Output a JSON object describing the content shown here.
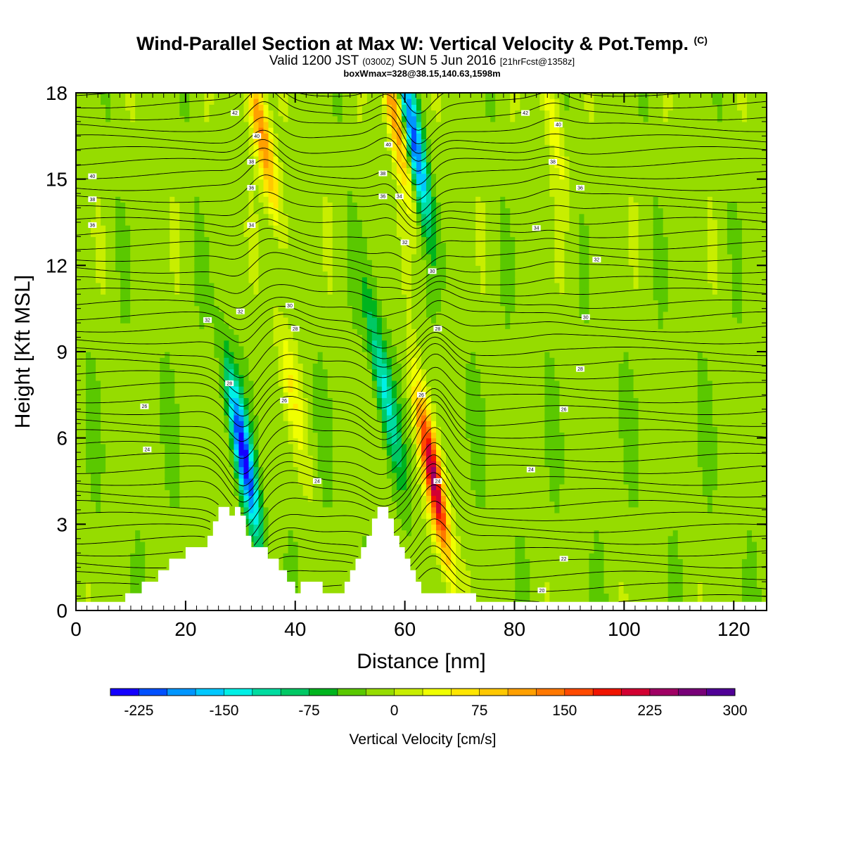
{
  "header": {
    "title_main": "Wind-Parallel Section at Max W: Vertical Velocity & Pot.Temp.",
    "title_copyright": "(C)",
    "valid_prefix": "Valid 1200 JST",
    "valid_utc": "(0300Z)",
    "valid_date": "SUN 5 Jun 2016",
    "valid_fcst": "[21hrFcst@1358z]",
    "box_info": "boxWmax=328@38.15,140.63,1598m"
  },
  "chart_data": {
    "type": "heatmap",
    "xlabel": "Distance [nm]",
    "ylabel": "Height [Kft MSL]",
    "xlim": [
      0,
      126
    ],
    "ylim": [
      0,
      18
    ],
    "x_ticks": [
      "0",
      "20",
      "40",
      "60",
      "80",
      "100",
      "120"
    ],
    "y_ticks": [
      "0",
      "3",
      "6",
      "9",
      "12",
      "15",
      "18"
    ],
    "colorbar": {
      "title": "Vertical Velocity [cm/s]",
      "tick_labels": [
        "-225",
        "-150",
        "-75",
        "0",
        "75",
        "150",
        "225",
        "300"
      ],
      "colors": [
        "#1400ff",
        "#0050ff",
        "#0096ff",
        "#00c8ff",
        "#00f0e6",
        "#00dca0",
        "#00c864",
        "#00b41e",
        "#5ac800",
        "#96dc00",
        "#c8ee00",
        "#f0ff00",
        "#ffe600",
        "#ffc800",
        "#ffa000",
        "#ff7800",
        "#ff4a00",
        "#f01400",
        "#d20032",
        "#a00064",
        "#780078",
        "#500096"
      ]
    },
    "w_field": {
      "background_cm_s": 10,
      "features": [
        {
          "x": 30.5,
          "z": 5.5,
          "w": -220
        },
        {
          "x": 34,
          "z": 16.5,
          "w": 150
        },
        {
          "x": 39,
          "z": 8,
          "w": 60
        },
        {
          "x": 56,
          "z": 8,
          "w": -120
        },
        {
          "x": 58,
          "z": 17.5,
          "w": 150
        },
        {
          "x": 61.5,
          "z": 16.5,
          "w": -200
        },
        {
          "x": 65.3,
          "z": 4.5,
          "w": 250
        },
        {
          "x": 87,
          "z": 17,
          "w": 50
        }
      ]
    },
    "terrain_kft": [
      [
        0,
        0.3
      ],
      [
        9,
        0.3
      ],
      [
        9,
        0.6
      ],
      [
        12,
        0.6
      ],
      [
        12,
        1.0
      ],
      [
        15,
        1.0
      ],
      [
        15,
        1.4
      ],
      [
        17,
        1.4
      ],
      [
        17,
        1.8
      ],
      [
        20,
        1.8
      ],
      [
        20,
        2.2
      ],
      [
        24,
        2.2
      ],
      [
        24,
        2.6
      ],
      [
        25,
        2.6
      ],
      [
        25,
        3.1
      ],
      [
        26,
        3.1
      ],
      [
        26,
        3.6
      ],
      [
        28,
        3.6
      ],
      [
        28,
        3.3
      ],
      [
        29,
        3.3
      ],
      [
        29,
        3.6
      ],
      [
        30,
        3.6
      ],
      [
        30,
        3.3
      ],
      [
        31,
        3.3
      ],
      [
        31,
        2.6
      ],
      [
        32,
        2.6
      ],
      [
        32,
        2.2
      ],
      [
        35,
        2.2
      ],
      [
        35,
        1.8
      ],
      [
        37,
        1.8
      ],
      [
        37,
        1.4
      ],
      [
        38.5,
        1.4
      ],
      [
        38.5,
        1.0
      ],
      [
        40,
        1.0
      ],
      [
        40,
        0.6
      ],
      [
        41,
        0.6
      ],
      [
        41,
        1.0
      ],
      [
        45,
        1.0
      ],
      [
        45,
        0.6
      ],
      [
        46,
        0.6
      ],
      [
        46,
        0.6
      ],
      [
        49,
        0.6
      ],
      [
        49,
        1.0
      ],
      [
        50,
        1.0
      ],
      [
        50,
        1.4
      ],
      [
        51,
        1.4
      ],
      [
        51,
        1.8
      ],
      [
        52,
        1.8
      ],
      [
        52,
        2.2
      ],
      [
        53,
        2.2
      ],
      [
        53,
        2.6
      ],
      [
        54,
        2.6
      ],
      [
        54,
        3.2
      ],
      [
        55,
        3.2
      ],
      [
        55,
        3.6
      ],
      [
        57,
        3.6
      ],
      [
        57,
        3.2
      ],
      [
        58,
        3.2
      ],
      [
        58,
        2.6
      ],
      [
        59,
        2.6
      ],
      [
        59,
        2.2
      ],
      [
        60,
        2.2
      ],
      [
        60,
        1.8
      ],
      [
        61,
        1.8
      ],
      [
        61,
        1.4
      ],
      [
        62,
        1.4
      ],
      [
        62,
        1.0
      ],
      [
        63,
        1.0
      ],
      [
        63,
        0.6
      ],
      [
        65,
        0.6
      ],
      [
        65,
        0.6
      ],
      [
        73,
        0.6
      ],
      [
        73,
        0.3
      ],
      [
        126,
        0.3
      ]
    ],
    "contour_labels": [
      {
        "x": 3,
        "z": 15.1,
        "text": "40"
      },
      {
        "x": 3,
        "z": 14.3,
        "text": "38"
      },
      {
        "x": 3,
        "z": 13.4,
        "text": "36"
      },
      {
        "x": 12.5,
        "z": 7.1,
        "text": "26"
      },
      {
        "x": 13,
        "z": 5.6,
        "text": "24"
      },
      {
        "x": 24,
        "z": 10.1,
        "text": "32"
      },
      {
        "x": 28,
        "z": 7.9,
        "text": "28"
      },
      {
        "x": 29,
        "z": 17.3,
        "text": "42"
      },
      {
        "x": 33,
        "z": 16.5,
        "text": "40"
      },
      {
        "x": 32,
        "z": 15.6,
        "text": "38"
      },
      {
        "x": 32,
        "z": 14.7,
        "text": "36"
      },
      {
        "x": 32,
        "z": 13.4,
        "text": "34"
      },
      {
        "x": 30,
        "z": 10.4,
        "text": "32"
      },
      {
        "x": 39,
        "z": 10.6,
        "text": "30"
      },
      {
        "x": 40,
        "z": 9.8,
        "text": "28"
      },
      {
        "x": 38,
        "z": 7.3,
        "text": "26"
      },
      {
        "x": 44,
        "z": 4.5,
        "text": "24"
      },
      {
        "x": 57,
        "z": 16.2,
        "text": "40"
      },
      {
        "x": 56,
        "z": 15.2,
        "text": "38"
      },
      {
        "x": 56,
        "z": 14.4,
        "text": "36"
      },
      {
        "x": 59,
        "z": 14.4,
        "text": "34"
      },
      {
        "x": 60,
        "z": 12.8,
        "text": "32"
      },
      {
        "x": 65,
        "z": 11.8,
        "text": "30"
      },
      {
        "x": 66,
        "z": 9.8,
        "text": "28"
      },
      {
        "x": 63,
        "z": 7.5,
        "text": "26"
      },
      {
        "x": 66,
        "z": 4.5,
        "text": "24"
      },
      {
        "x": 82,
        "z": 17.3,
        "text": "42"
      },
      {
        "x": 88,
        "z": 16.9,
        "text": "40"
      },
      {
        "x": 87,
        "z": 15.6,
        "text": "38"
      },
      {
        "x": 92,
        "z": 14.7,
        "text": "36"
      },
      {
        "x": 84,
        "z": 13.3,
        "text": "34"
      },
      {
        "x": 95,
        "z": 12.2,
        "text": "32"
      },
      {
        "x": 93,
        "z": 10.2,
        "text": "30"
      },
      {
        "x": 92,
        "z": 8.4,
        "text": "28"
      },
      {
        "x": 89,
        "z": 7.0,
        "text": "26"
      },
      {
        "x": 83,
        "z": 4.9,
        "text": "24"
      },
      {
        "x": 89,
        "z": 1.8,
        "text": "22"
      },
      {
        "x": 85,
        "z": 0.7,
        "text": "20"
      }
    ]
  }
}
